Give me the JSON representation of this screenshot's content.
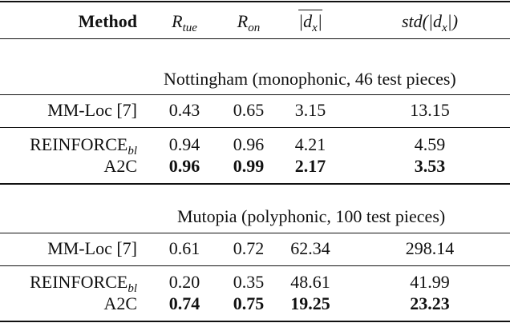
{
  "header": {
    "method": "Method",
    "r_tue": {
      "base": "R",
      "sub": "tue"
    },
    "r_on": {
      "base": "R",
      "sub": "on"
    },
    "mean_dx": "|d",
    "mean_dx_sub": "x",
    "mean_dx_end": "|",
    "std_dx_pre": "std(|d",
    "std_dx_sub": "x",
    "std_dx_post": "|)"
  },
  "sections": [
    {
      "title": "Nottingham (monophonic, 46 test pieces)",
      "rows": [
        {
          "method": "MM-Loc [7]",
          "method_sub": "",
          "r_tue": "0.43",
          "r_on": "0.65",
          "mean_dx": "3.15",
          "std_dx": "13.15",
          "bold": false
        },
        {
          "method": "REINFORCE",
          "method_sub": "bl",
          "r_tue": "0.94",
          "r_on": "0.96",
          "mean_dx": "4.21",
          "std_dx": "4.59",
          "bold": false
        },
        {
          "method": "A2C",
          "method_sub": "",
          "r_tue": "0.96",
          "r_on": "0.99",
          "mean_dx": "2.17",
          "std_dx": "3.53",
          "bold": true
        }
      ]
    },
    {
      "title": "Mutopia (polyphonic, 100 test pieces)",
      "rows": [
        {
          "method": "MM-Loc [7]",
          "method_sub": "",
          "r_tue": "0.61",
          "r_on": "0.72",
          "mean_dx": "62.34",
          "std_dx": "298.14",
          "bold": false
        },
        {
          "method": "REINFORCE",
          "method_sub": "bl",
          "r_tue": "0.20",
          "r_on": "0.35",
          "mean_dx": "48.61",
          "std_dx": "41.99",
          "bold": false
        },
        {
          "method": "A2C",
          "method_sub": "",
          "r_tue": "0.74",
          "r_on": "0.75",
          "mean_dx": "19.25",
          "std_dx": "23.23",
          "bold": true
        }
      ]
    }
  ]
}
